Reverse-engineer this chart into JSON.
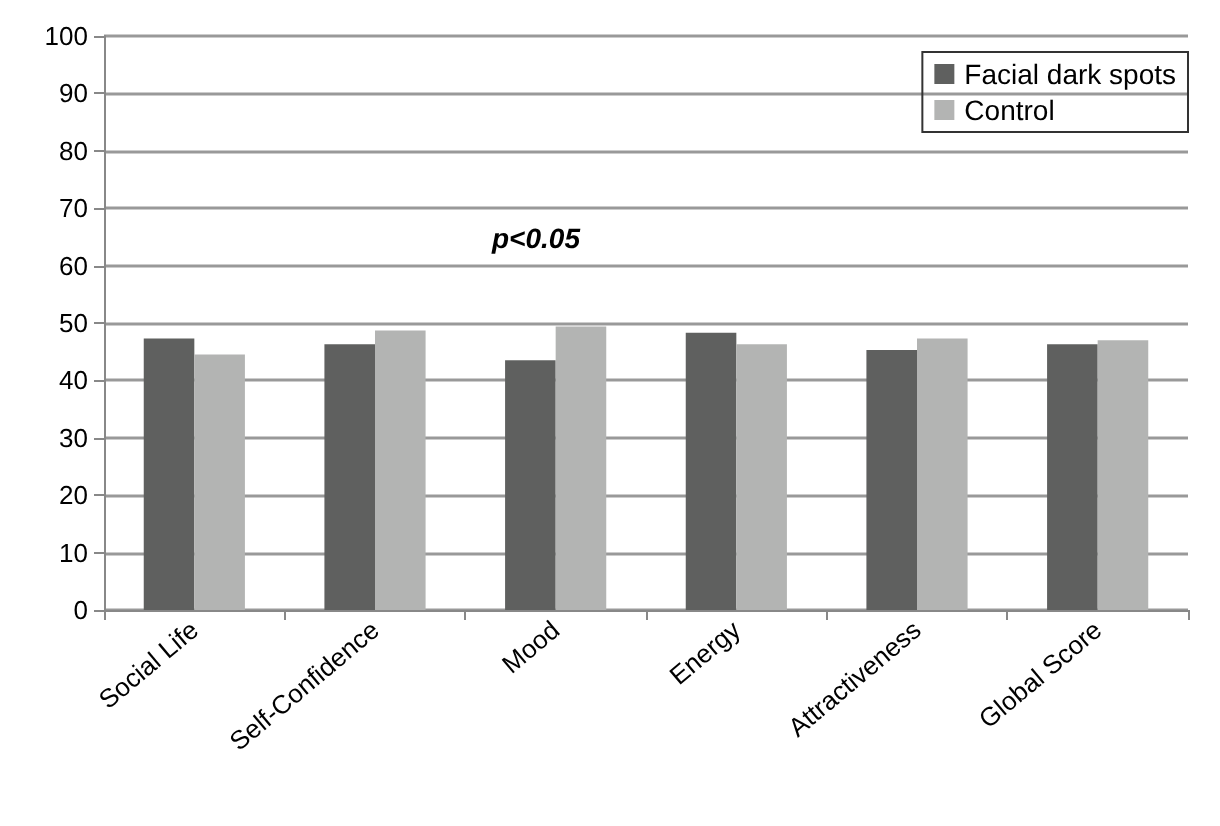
{
  "chart_data": {
    "type": "bar",
    "categories": [
      "Social Life",
      "Self-Confidence",
      "Mood",
      "Energy",
      "Attractiveness",
      "Global Score"
    ],
    "series": [
      {
        "name": "Facial dark spots",
        "color": "#5f605f",
        "values": [
          47.3,
          46.3,
          43.5,
          48.3,
          45.3,
          46.3
        ]
      },
      {
        "name": "Control",
        "color": "#b3b4b3",
        "values": [
          44.5,
          48.7,
          49.4,
          46.3,
          47.3,
          47.0
        ]
      }
    ],
    "ylim": [
      0,
      100
    ],
    "yticks": [
      0,
      10,
      20,
      30,
      40,
      50,
      60,
      70,
      80,
      90,
      100
    ],
    "grid": "y",
    "legend": "top right",
    "annotations": [
      "p<0.05"
    ]
  }
}
